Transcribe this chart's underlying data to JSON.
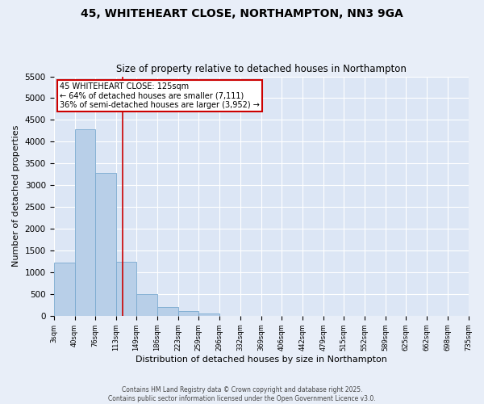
{
  "title_line1": "45, WHITEHEART CLOSE, NORTHAMPTON, NN3 9GA",
  "title_line2": "Size of property relative to detached houses in Northampton",
  "xlabel": "Distribution of detached houses by size in Northampton",
  "ylabel": "Number of detached properties",
  "footer_line1": "Contains HM Land Registry data © Crown copyright and database right 2025.",
  "footer_line2": "Contains public sector information licensed under the Open Government Licence v3.0.",
  "annotation_line1": "45 WHITEHEART CLOSE: 125sqm",
  "annotation_line2": "← 64% of detached houses are smaller (7,111)",
  "annotation_line3": "36% of semi-detached houses are larger (3,952) →",
  "property_size": 125,
  "bar_edges": [
    3,
    40,
    76,
    113,
    149,
    186,
    223,
    259,
    296,
    332,
    369,
    406,
    442,
    479,
    515,
    552,
    589,
    625,
    662,
    698,
    735
  ],
  "bar_heights": [
    1220,
    4290,
    3280,
    1240,
    490,
    200,
    100,
    50,
    0,
    0,
    0,
    0,
    0,
    0,
    0,
    0,
    0,
    0,
    0,
    0
  ],
  "bar_color": "#b8cfe8",
  "bar_edge_color": "#7aaad0",
  "vline_color": "#cc0000",
  "vline_x": 125,
  "annotation_box_color": "#cc0000",
  "fig_background_color": "#e8eef8",
  "ax_background_color": "#dce6f5",
  "grid_color": "#ffffff",
  "ylim": [
    0,
    5500
  ],
  "yticks": [
    0,
    500,
    1000,
    1500,
    2000,
    2500,
    3000,
    3500,
    4000,
    4500,
    5000,
    5500
  ]
}
